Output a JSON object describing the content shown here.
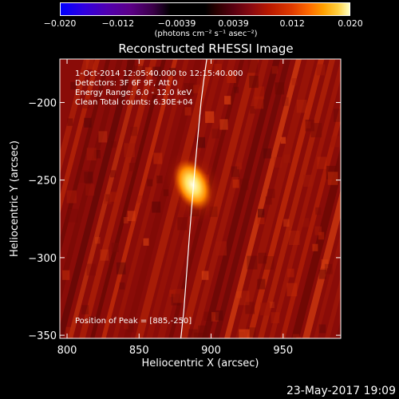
{
  "colorbar": {
    "ticks": [
      "−0.020",
      "−0.012",
      "−0.0039",
      "0.0039",
      "0.012",
      "0.020"
    ],
    "tick_values": [
      -0.02,
      -0.012,
      -0.0039,
      0.0039,
      0.012,
      0.02
    ],
    "unit_label": "(photons cm⁻² s⁻¹ asec⁻²)"
  },
  "chart_data": {
    "type": "heatmap",
    "title": "Reconstructed RHESSI Image",
    "xlabel": "Heliocentric X (arcsec)",
    "ylabel": "Heliocentric Y (arcsec)",
    "xlim": [
      795,
      990
    ],
    "ylim": [
      -352,
      -172
    ],
    "x_ticks": [
      800,
      850,
      900,
      950
    ],
    "y_ticks": [
      -200,
      -250,
      -300,
      -350
    ],
    "x_tick_labels": [
      "800",
      "850",
      "900",
      "950"
    ],
    "y_tick_labels": [
      "−200",
      "−250",
      "−300",
      "−350"
    ],
    "peak": {
      "x": 885,
      "y": -250
    },
    "limb_curve": [
      [
        897,
        -172
      ],
      [
        895,
        -185
      ],
      [
        893,
        -200
      ],
      [
        891,
        -220
      ],
      [
        889,
        -240
      ],
      [
        887,
        -262
      ],
      [
        885,
        -285
      ],
      [
        883,
        -310
      ],
      [
        881,
        -335
      ],
      [
        879,
        -352
      ]
    ],
    "annotations": {
      "time_range": "1-Oct-2014 12:05:40.000 to 12:15:40.000",
      "detectors": "Detectors: 3F 6F 9F, Att 0",
      "energy_range": "Energy Range: 6.0 - 12.0 keV",
      "clean_counts": "Clean     Total counts: 6.30E+04",
      "peak_position": "Position of Peak = [885,-250]"
    },
    "color_scale_range": [
      -0.02,
      0.02
    ]
  },
  "footer": {
    "date_stamp": "23-May-2017 19:09"
  }
}
